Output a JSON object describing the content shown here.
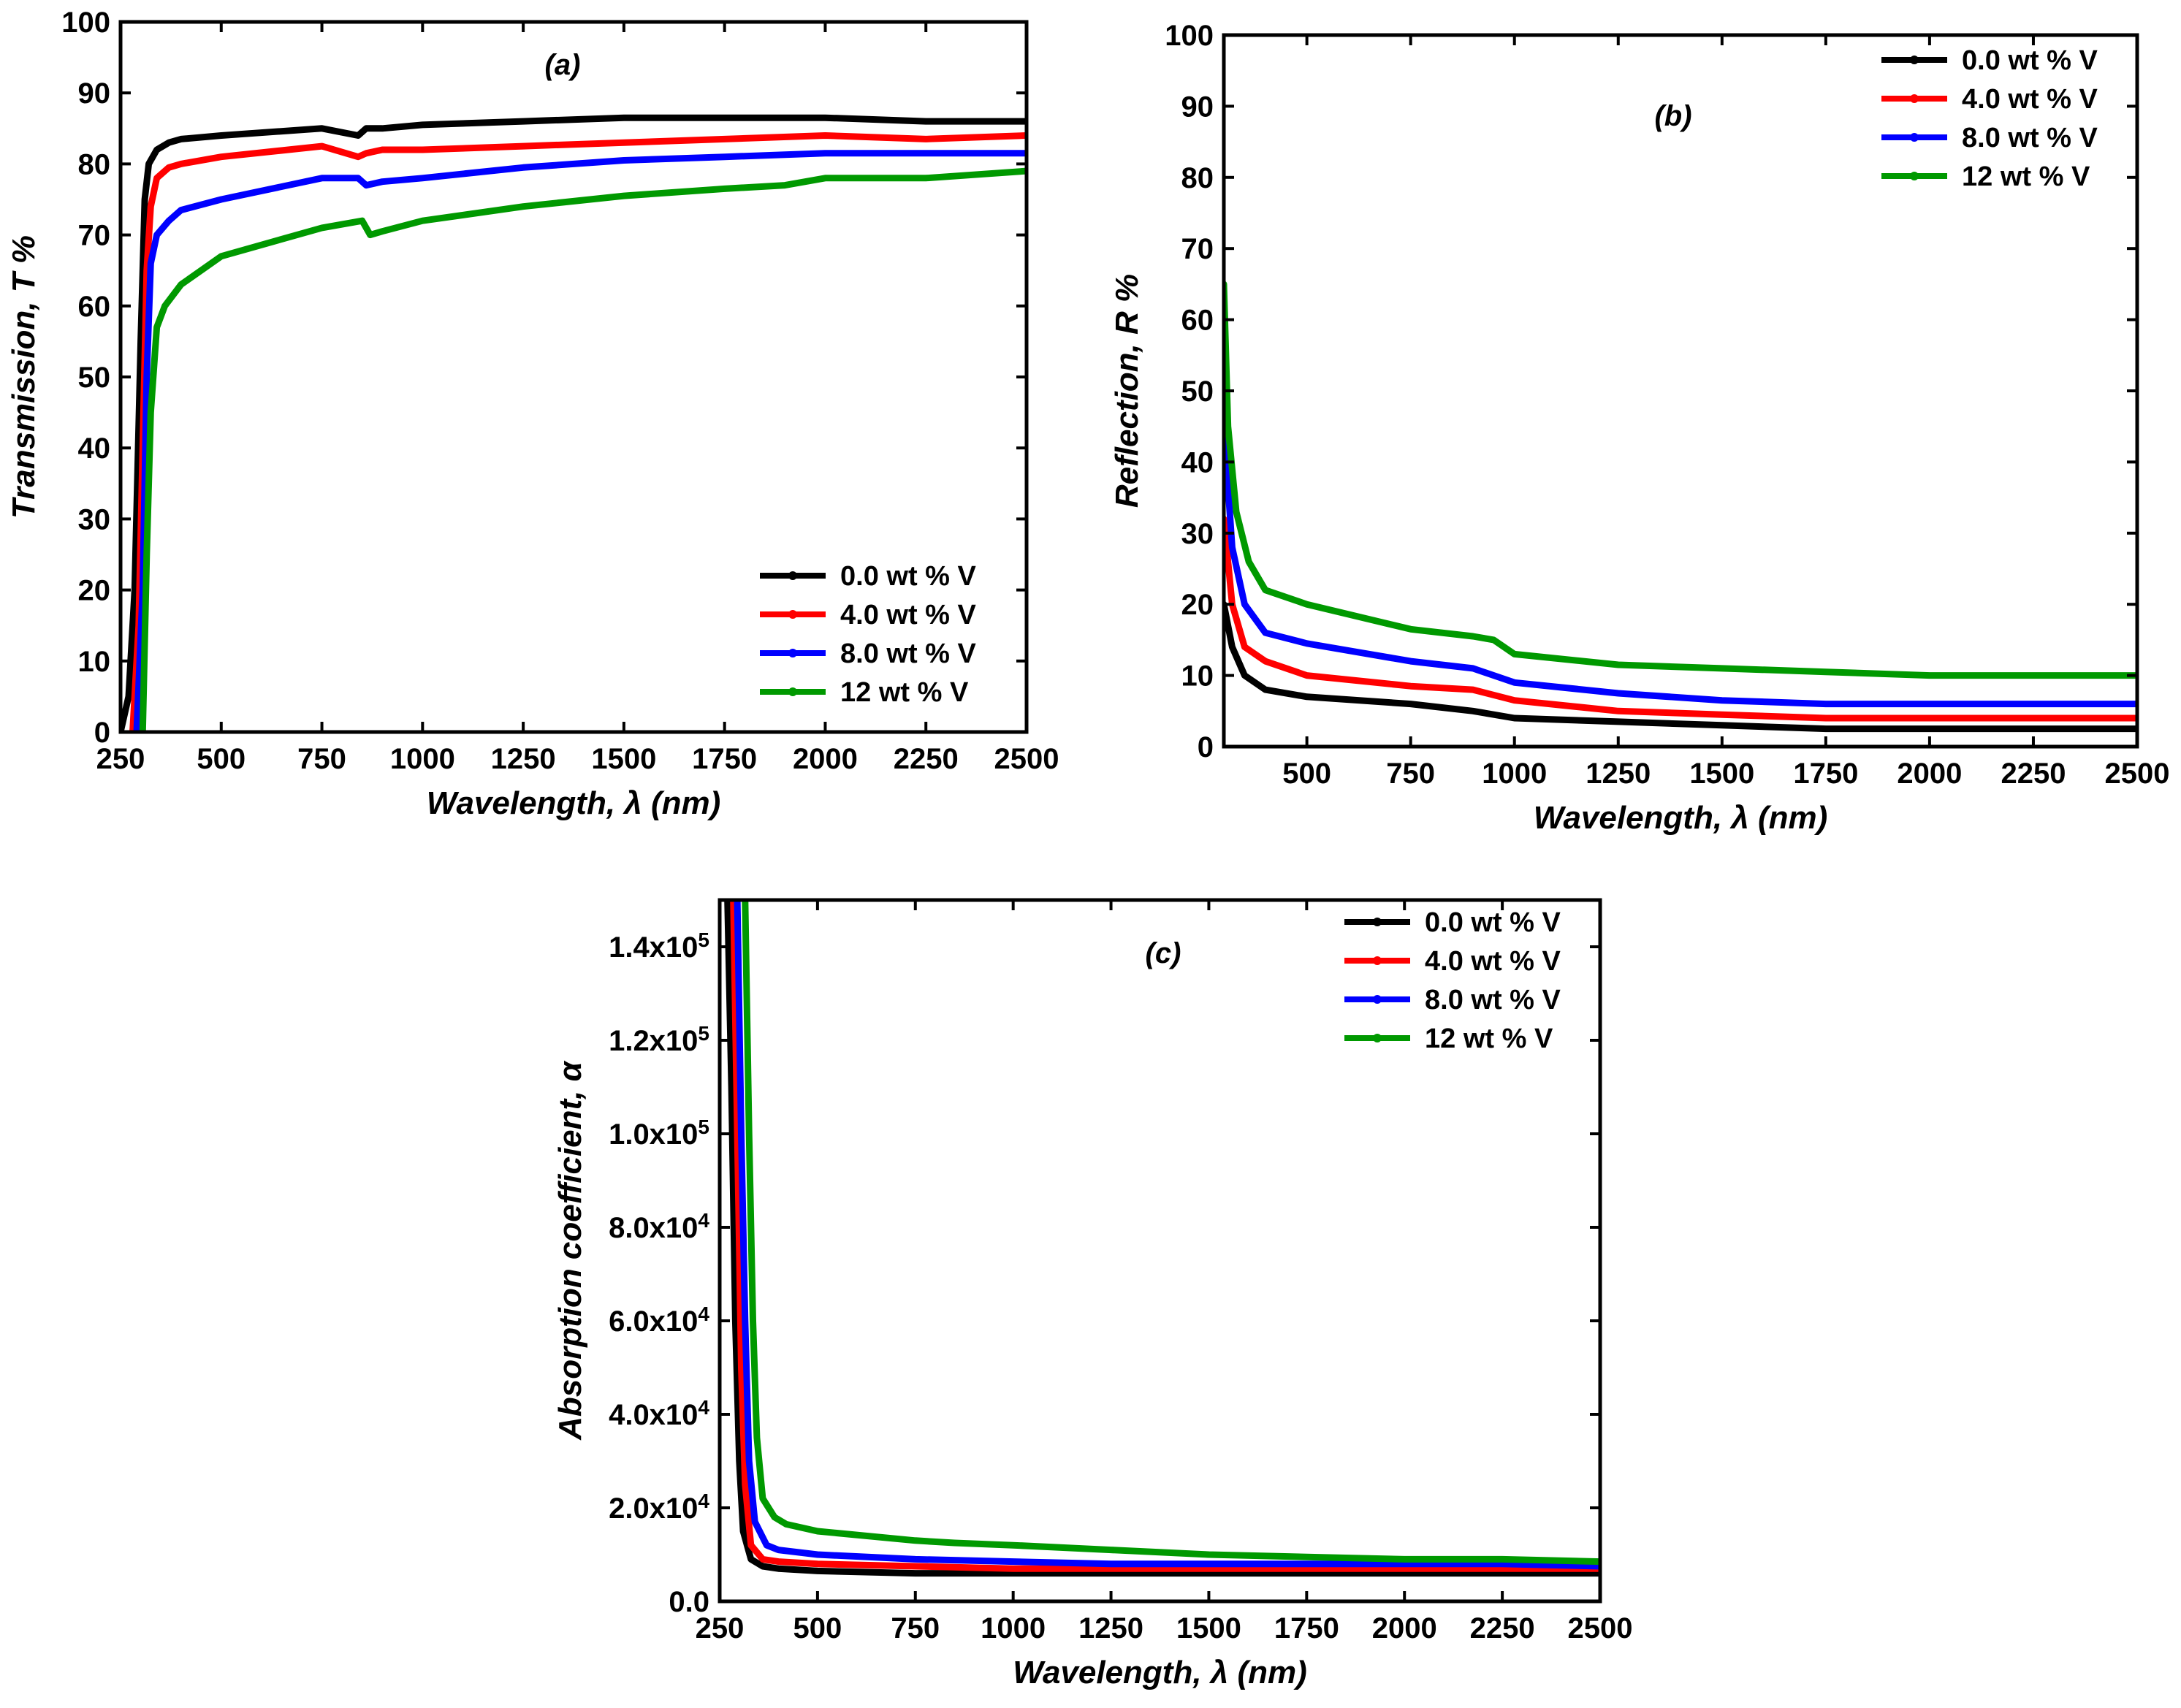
{
  "chart_data": [
    {
      "id": "a",
      "type": "line",
      "panel_label": "(a)",
      "xlabel": "Wavelength, λ (nm)",
      "ylabel": "Transmission, T %",
      "xlim": [
        250,
        2500
      ],
      "ylim": [
        0,
        100
      ],
      "xticks": [
        250,
        500,
        750,
        1000,
        1250,
        1500,
        1750,
        2000,
        2250,
        2500
      ],
      "yticks": [
        0,
        10,
        20,
        30,
        40,
        50,
        60,
        70,
        80,
        90,
        100
      ],
      "legend_position": "lower-right",
      "series": [
        {
          "name": "0.0 wt % V",
          "color": "#000000",
          "x": [
            250,
            270,
            285,
            300,
            310,
            320,
            340,
            370,
            400,
            500,
            750,
            840,
            860,
            900,
            1000,
            1250,
            1500,
            1750,
            2000,
            2250,
            2400,
            2500
          ],
          "y": [
            0,
            5,
            20,
            55,
            75,
            80,
            82,
            83,
            83.5,
            84,
            85,
            84,
            85,
            85,
            85.5,
            86,
            86.5,
            86.5,
            86.5,
            86,
            86,
            86
          ]
        },
        {
          "name": "4.0 wt % V",
          "color": "#ff0000",
          "x": [
            280,
            295,
            305,
            315,
            325,
            340,
            370,
            400,
            500,
            750,
            840,
            860,
            900,
            1000,
            1250,
            1500,
            1750,
            2000,
            2250,
            2500
          ],
          "y": [
            0,
            15,
            40,
            65,
            74,
            78,
            79.5,
            80,
            81,
            82.5,
            81,
            81.5,
            82,
            82,
            82.5,
            83,
            83.5,
            84,
            83.5,
            84
          ]
        },
        {
          "name": "8.0 wt % V",
          "color": "#0000ff",
          "x": [
            290,
            305,
            315,
            325,
            340,
            370,
            400,
            500,
            750,
            840,
            860,
            900,
            1000,
            1250,
            1500,
            1750,
            2000,
            2250,
            2500
          ],
          "y": [
            0,
            20,
            50,
            66,
            70,
            72,
            73.5,
            75,
            78,
            78,
            77,
            77.5,
            78,
            79.5,
            80.5,
            81,
            81.5,
            81.5,
            81.5
          ]
        },
        {
          "name": "12  wt % V",
          "color": "#009900",
          "x": [
            305,
            315,
            325,
            340,
            360,
            400,
            500,
            750,
            850,
            870,
            900,
            1000,
            1250,
            1500,
            1750,
            1900,
            2000,
            2250,
            2500
          ],
          "y": [
            0,
            25,
            45,
            57,
            60,
            63,
            67,
            71,
            72,
            70,
            70.5,
            72,
            74,
            75.5,
            76.5,
            77,
            78,
            78,
            79
          ]
        }
      ]
    },
    {
      "id": "b",
      "type": "line",
      "panel_label": "(b)",
      "xlabel": "Wavelength, λ (nm)",
      "ylabel": "Reflection, R %",
      "xlim": [
        300,
        2500
      ],
      "ylim": [
        0,
        100
      ],
      "xticks": [
        500,
        750,
        1000,
        1250,
        1500,
        1750,
        2000,
        2250,
        2500
      ],
      "yticks": [
        0,
        10,
        20,
        30,
        40,
        50,
        60,
        70,
        80,
        90,
        100
      ],
      "legend_position": "top-right",
      "series": [
        {
          "name": "0.0 wt % V",
          "color": "#000000",
          "x": [
            300,
            320,
            350,
            400,
            500,
            750,
            900,
            1000,
            1250,
            1500,
            1750,
            2000,
            2250,
            2500
          ],
          "y": [
            20,
            14,
            10,
            8,
            7,
            6,
            5,
            4,
            3.5,
            3,
            2.5,
            2.5,
            2.5,
            2.5
          ]
        },
        {
          "name": "4.0 wt % V",
          "color": "#ff0000",
          "x": [
            300,
            320,
            350,
            400,
            500,
            750,
            900,
            1000,
            1250,
            1500,
            1750,
            2000,
            2250,
            2500
          ],
          "y": [
            32,
            20,
            14,
            12,
            10,
            8.5,
            8,
            6.5,
            5,
            4.5,
            4,
            4,
            4,
            4
          ]
        },
        {
          "name": "8.0 wt % V",
          "color": "#0000ff",
          "x": [
            300,
            320,
            350,
            400,
            500,
            750,
            900,
            1000,
            1250,
            1500,
            1750,
            2000,
            2250,
            2500
          ],
          "y": [
            45,
            28,
            20,
            16,
            14.5,
            12,
            11,
            9,
            7.5,
            6.5,
            6,
            6,
            6,
            6
          ]
        },
        {
          "name": "12  wt % V",
          "color": "#009900",
          "x": [
            300,
            310,
            330,
            360,
            400,
            500,
            750,
            900,
            950,
            1000,
            1250,
            1500,
            1750,
            2000,
            2250,
            2500
          ],
          "y": [
            65,
            45,
            33,
            26,
            22,
            20,
            16.5,
            15.5,
            15,
            13,
            11.5,
            11,
            10.5,
            10,
            10,
            10
          ]
        }
      ]
    },
    {
      "id": "c",
      "type": "line",
      "panel_label": "(c)",
      "xlabel": "Wavelength, λ (nm)",
      "ylabel": "Absorption coefficient, α",
      "xlim": [
        250,
        2500
      ],
      "ylim": [
        0,
        150000
      ],
      "xticks": [
        250,
        500,
        750,
        1000,
        1250,
        1500,
        1750,
        2000,
        2250,
        2500
      ],
      "yticks": [
        0,
        20000,
        40000,
        60000,
        80000,
        100000,
        120000,
        140000
      ],
      "ytick_labels": [
        "0.0",
        "2.0x10^4",
        "4.0x10^4",
        "6.0x10^4",
        "8.0x10^4",
        "1.0x10^5",
        "1.2x10^5",
        "1.4x10^5"
      ],
      "legend_position": "top-right",
      "series": [
        {
          "name": "0.0 wt % V",
          "color": "#000000",
          "x": [
            270,
            280,
            290,
            300,
            310,
            330,
            360,
            400,
            500,
            750,
            1000,
            1250,
            1500,
            1750,
            2000,
            2250,
            2500
          ],
          "y": [
            150000,
            110000,
            60000,
            30000,
            15000,
            9000,
            7500,
            7000,
            6500,
            6000,
            6000,
            6000,
            6000,
            6000,
            6000,
            6000,
            6000
          ]
        },
        {
          "name": "4.0 wt % V",
          "color": "#ff0000",
          "x": [
            285,
            295,
            305,
            315,
            330,
            360,
            400,
            500,
            750,
            1000,
            1250,
            1500,
            1750,
            2000,
            2250,
            2500
          ],
          "y": [
            150000,
            100000,
            50000,
            25000,
            12000,
            9000,
            8500,
            8000,
            7500,
            7000,
            7000,
            7000,
            7000,
            7000,
            7000,
            7000
          ]
        },
        {
          "name": "8.0 wt % V",
          "color": "#0000ff",
          "x": [
            295,
            305,
            315,
            325,
            340,
            370,
            400,
            500,
            750,
            1000,
            1250,
            1500,
            1750,
            2000,
            2250,
            2500
          ],
          "y": [
            150000,
            100000,
            60000,
            30000,
            17000,
            12000,
            11000,
            10000,
            9000,
            8500,
            8000,
            8000,
            8000,
            8000,
            8000,
            7500
          ]
        },
        {
          "name": "12  wt % V",
          "color": "#009900",
          "x": [
            315,
            325,
            335,
            345,
            360,
            390,
            420,
            500,
            750,
            850,
            1000,
            1250,
            1500,
            1750,
            2000,
            2250,
            2500
          ],
          "y": [
            150000,
            100000,
            60000,
            35000,
            22000,
            18000,
            16500,
            15000,
            13000,
            12500,
            12000,
            11000,
            10000,
            9500,
            9000,
            9000,
            8500
          ]
        }
      ]
    }
  ]
}
